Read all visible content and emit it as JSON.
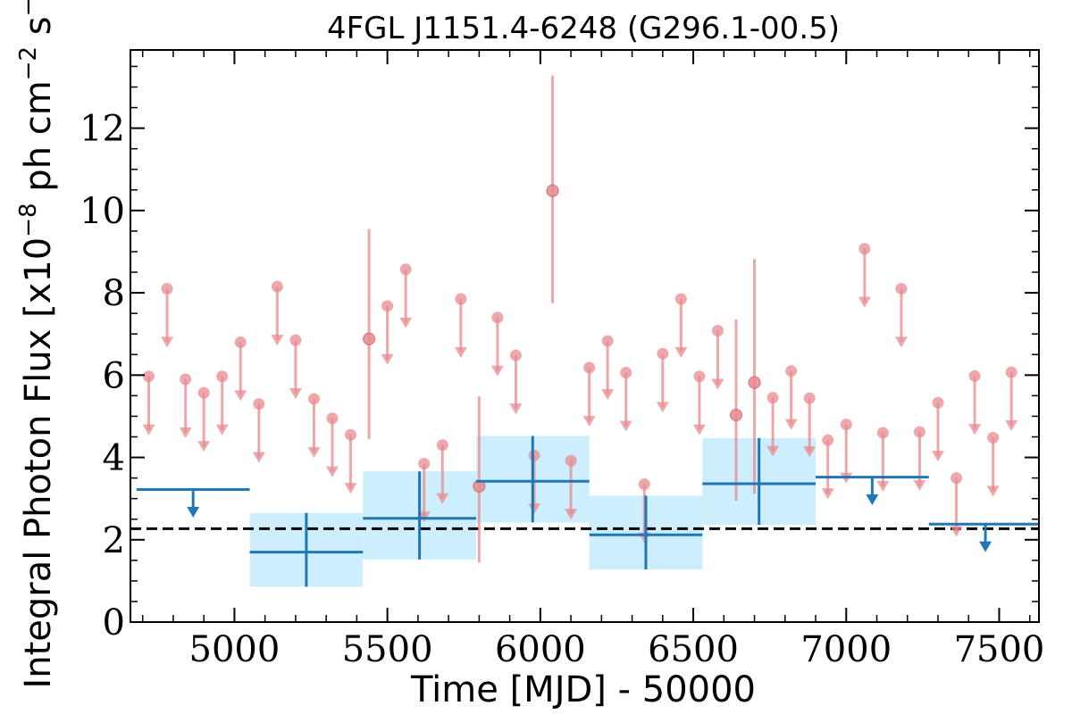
{
  "chart_data": {
    "type": "scatter",
    "title": "4FGL J1151.4-6248 (G296.1-00.5)",
    "xlabel": "Time [MJD] - 50000",
    "ylabel": "Integral Photon Flux [x10",
    "ylabel_exp1": "−8",
    "ylabel_mid": " ph cm",
    "ylabel_exp2": "−2",
    "ylabel_mid2": " s",
    "ylabel_exp3": "−1",
    "ylabel_end": "]",
    "xlim": [
      4660,
      7630
    ],
    "ylim": [
      0,
      13.9
    ],
    "xticks": [
      5000,
      5500,
      6000,
      6500,
      7000,
      7500
    ],
    "yticks": [
      0,
      2,
      4,
      6,
      8,
      10,
      12
    ],
    "xtick_labels": [
      "5000",
      "5500",
      "6000",
      "6500",
      "7000",
      "7500"
    ],
    "ytick_labels": [
      "0",
      "2",
      "4",
      "6",
      "8",
      "10",
      "12"
    ],
    "mean_flux": 2.27,
    "colors": {
      "fine_points": "#e88a8e",
      "coarse_bins": "#1f77b4",
      "coarse_band": "#cdeefd",
      "mean_line": "#000000"
    },
    "fine_upper_limits": [
      {
        "x": 4720,
        "y": 5.97
      },
      {
        "x": 4780,
        "y": 8.1
      },
      {
        "x": 4840,
        "y": 5.9
      },
      {
        "x": 4900,
        "y": 5.57
      },
      {
        "x": 4960,
        "y": 5.97
      },
      {
        "x": 5020,
        "y": 6.8
      },
      {
        "x": 5080,
        "y": 5.3
      },
      {
        "x": 5140,
        "y": 8.15
      },
      {
        "x": 5200,
        "y": 6.85
      },
      {
        "x": 5260,
        "y": 5.42
      },
      {
        "x": 5320,
        "y": 4.95
      },
      {
        "x": 5380,
        "y": 4.55
      },
      {
        "x": 5500,
        "y": 7.68
      },
      {
        "x": 5560,
        "y": 8.57
      },
      {
        "x": 5620,
        "y": 3.85
      },
      {
        "x": 5680,
        "y": 4.3
      },
      {
        "x": 5740,
        "y": 7.85
      },
      {
        "x": 5860,
        "y": 7.4
      },
      {
        "x": 5920,
        "y": 6.48
      },
      {
        "x": 5980,
        "y": 4.05
      },
      {
        "x": 6100,
        "y": 3.92
      },
      {
        "x": 6160,
        "y": 6.18
      },
      {
        "x": 6220,
        "y": 6.83
      },
      {
        "x": 6280,
        "y": 6.06
      },
      {
        "x": 6340,
        "y": 3.35
      },
      {
        "x": 6400,
        "y": 6.52
      },
      {
        "x": 6460,
        "y": 7.85
      },
      {
        "x": 6520,
        "y": 5.97
      },
      {
        "x": 6580,
        "y": 7.08
      },
      {
        "x": 6760,
        "y": 5.45
      },
      {
        "x": 6820,
        "y": 6.1
      },
      {
        "x": 6880,
        "y": 5.44
      },
      {
        "x": 6940,
        "y": 4.42
      },
      {
        "x": 7000,
        "y": 4.8
      },
      {
        "x": 7060,
        "y": 9.07
      },
      {
        "x": 7120,
        "y": 4.6
      },
      {
        "x": 7180,
        "y": 8.1
      },
      {
        "x": 7240,
        "y": 4.62
      },
      {
        "x": 7300,
        "y": 5.33
      },
      {
        "x": 7360,
        "y": 3.5
      },
      {
        "x": 7420,
        "y": 5.98
      },
      {
        "x": 7480,
        "y": 4.48
      },
      {
        "x": 7540,
        "y": 6.07
      }
    ],
    "fine_detections": [
      {
        "x": 5440,
        "y": 6.88,
        "ylow": 4.45,
        "yhigh": 9.55
      },
      {
        "x": 5800,
        "y": 3.3,
        "ylow": 1.45,
        "yhigh": 5.48
      },
      {
        "x": 6040,
        "y": 10.48,
        "ylow": 7.75,
        "yhigh": 13.28
      },
      {
        "x": 6640,
        "y": 5.03,
        "ylow": 2.95,
        "yhigh": 7.35
      },
      {
        "x": 6700,
        "y": 5.82,
        "ylow": 3.12,
        "yhigh": 8.82
      }
    ],
    "coarse_detections": [
      {
        "x0": 5050,
        "x1": 5420,
        "y": 1.7,
        "ylow": 0.86,
        "yhigh": 2.65
      },
      {
        "x0": 5420,
        "x1": 5790,
        "y": 2.52,
        "ylow": 1.52,
        "yhigh": 3.66
      },
      {
        "x0": 5790,
        "x1": 6160,
        "y": 3.42,
        "ylow": 2.42,
        "yhigh": 4.52
      },
      {
        "x0": 6160,
        "x1": 6530,
        "y": 2.12,
        "ylow": 1.28,
        "yhigh": 3.07
      },
      {
        "x0": 6530,
        "x1": 6900,
        "y": 3.36,
        "ylow": 2.36,
        "yhigh": 4.47
      }
    ],
    "coarse_upper_limits": [
      {
        "x0": 4680,
        "x1": 5050,
        "y": 3.22
      },
      {
        "x0": 6900,
        "x1": 7270,
        "y": 3.52
      },
      {
        "x0": 7270,
        "x1": 7640,
        "y": 2.38
      }
    ]
  }
}
